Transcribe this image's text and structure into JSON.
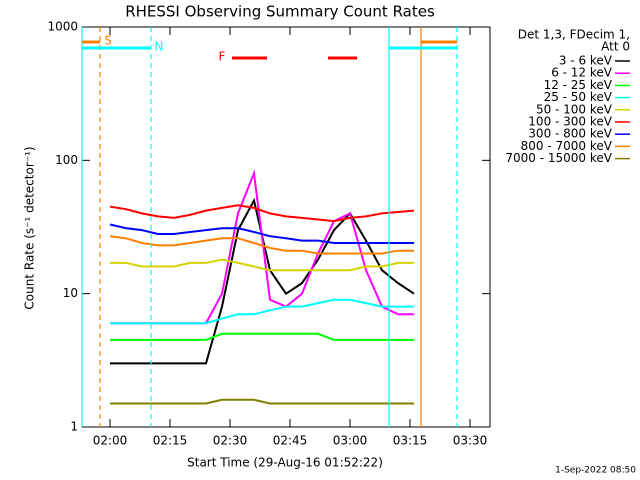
{
  "chart_data": {
    "type": "line",
    "title": "RHESSI Observing Summary Count Rates",
    "xlabel": "Start Time (29-Aug-16 01:52:22)",
    "ylabel": "Count Rate (s⁻¹ detector⁻¹)",
    "legend_title": [
      "Det 1,3, FDecim 1,",
      "Att 0"
    ],
    "footer": "1-Sep-2022 08:50",
    "ylog": true,
    "xlim": [
      113,
      215
    ],
    "ylim": [
      1,
      1000
    ],
    "xticks": [
      {
        "value": 120,
        "label": "02:00"
      },
      {
        "value": 135,
        "label": "02:15"
      },
      {
        "value": 150,
        "label": "02:30"
      },
      {
        "value": 165,
        "label": "02:45"
      },
      {
        "value": 180,
        "label": "03:00"
      },
      {
        "value": 195,
        "label": "03:15"
      },
      {
        "value": 210,
        "label": "03:30"
      }
    ],
    "yticks": [
      1,
      10,
      100,
      1000
    ],
    "x": [
      120,
      124,
      128,
      132,
      136,
      140,
      144,
      148,
      152,
      156,
      160,
      164,
      168,
      172,
      176,
      180,
      184,
      188,
      192,
      196
    ],
    "series": [
      {
        "name": "3 - 6 keV",
        "color": "#000000",
        "values": [
          3,
          3,
          3,
          3,
          3,
          3,
          3,
          8,
          30,
          50,
          15,
          10,
          12,
          18,
          30,
          40,
          25,
          15,
          12,
          10
        ]
      },
      {
        "name": "6 - 12 keV",
        "color": "#ff00ff",
        "values": [
          6,
          6,
          6,
          6,
          6,
          6,
          6,
          10,
          40,
          80,
          9,
          8,
          10,
          20,
          35,
          40,
          15,
          8,
          7,
          7
        ]
      },
      {
        "name": "12 - 25 keV",
        "color": "#00ff00",
        "values": [
          4.5,
          4.5,
          4.5,
          4.5,
          4.5,
          4.5,
          4.5,
          5,
          5,
          5,
          5,
          5,
          5,
          5,
          4.5,
          4.5,
          4.5,
          4.5,
          4.5,
          4.5
        ]
      },
      {
        "name": "25 - 50 keV",
        "color": "#00ffff",
        "values": [
          6,
          6,
          6,
          6,
          6,
          6,
          6,
          6.5,
          7,
          7,
          7.5,
          8,
          8,
          8.5,
          9,
          9,
          8.5,
          8,
          8,
          8
        ]
      },
      {
        "name": "50 - 100 keV",
        "color": "#d4d400",
        "values": [
          17,
          17,
          16,
          16,
          16,
          17,
          17,
          18,
          17,
          16,
          15,
          15,
          15,
          15,
          15,
          15,
          16,
          16,
          17,
          17
        ]
      },
      {
        "name": "100 - 300 keV",
        "color": "#ff0000",
        "values": [
          45,
          43,
          40,
          38,
          37,
          39,
          42,
          44,
          46,
          44,
          40,
          38,
          37,
          36,
          35,
          37,
          38,
          40,
          41,
          42
        ]
      },
      {
        "name": "300 - 800 keV",
        "color": "#0000ff",
        "values": [
          33,
          31,
          30,
          28,
          28,
          29,
          30,
          31,
          31,
          29,
          27,
          26,
          25,
          25,
          24,
          24,
          24,
          24,
          24,
          24
        ]
      },
      {
        "name": "800 - 7000 keV",
        "color": "#ff8000",
        "values": [
          27,
          26,
          24,
          23,
          23,
          24,
          25,
          26,
          26,
          24,
          22,
          21,
          21,
          20,
          20,
          20,
          20,
          20,
          21,
          21
        ]
      },
      {
        "name": "7000 - 15000 keV",
        "color": "#808000",
        "values": [
          1.5,
          1.5,
          1.5,
          1.5,
          1.5,
          1.5,
          1.5,
          1.6,
          1.6,
          1.6,
          1.5,
          1.5,
          1.5,
          1.5,
          1.5,
          1.5,
          1.5,
          1.5,
          1.5,
          1.5
        ]
      }
    ],
    "intervals": [
      {
        "label": "S",
        "color": "#ff8000",
        "ranges": [
          [
            113,
            117.5
          ],
          [
            197.75,
            206.75
          ]
        ]
      },
      {
        "label": "N",
        "color": "#00ffff",
        "ranges": [
          [
            113,
            130.25
          ],
          [
            189.75,
            206.75
          ]
        ]
      },
      {
        "label": "F",
        "color": "#ff0000",
        "ranges": [
          [
            150.5,
            159.25
          ],
          [
            174.5,
            181.75
          ]
        ]
      }
    ],
    "vlines": [
      {
        "x": 113,
        "color": "#00ffff",
        "dashed": false
      },
      {
        "x": 117.5,
        "color": "#ff8000",
        "dashed": true
      },
      {
        "x": 130.25,
        "color": "#00ffff",
        "dashed": true
      },
      {
        "x": 189.75,
        "color": "#00ffff",
        "dashed": false
      },
      {
        "x": 197.75,
        "color": "#ff8000",
        "dashed": false
      },
      {
        "x": 206.75,
        "color": "#00ffff",
        "dashed": true
      }
    ]
  }
}
